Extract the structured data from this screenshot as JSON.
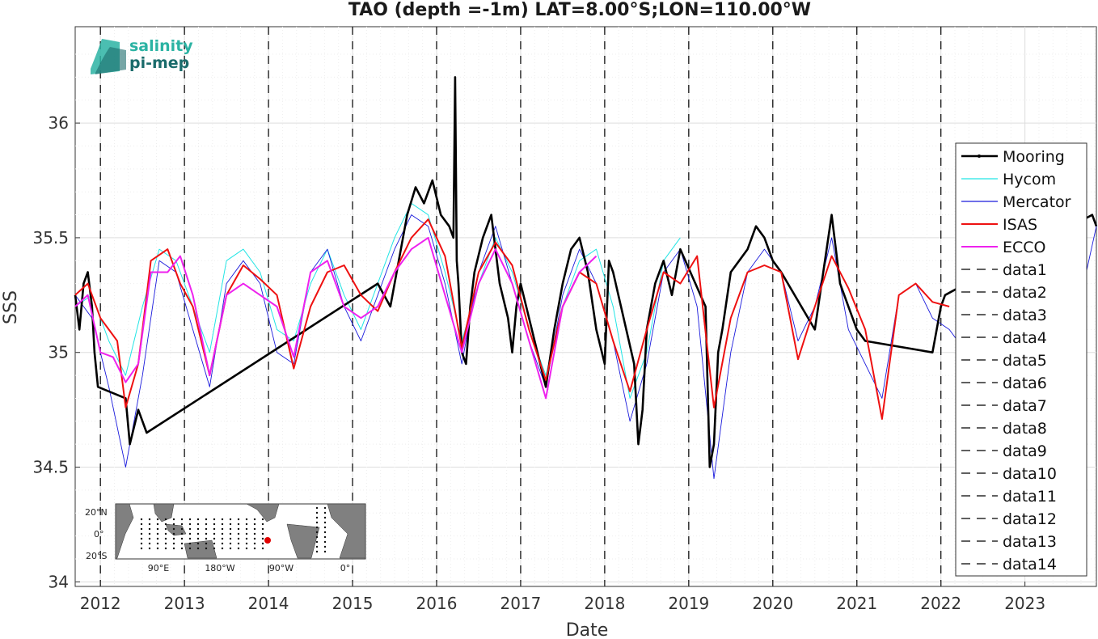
{
  "chart_data": {
    "type": "line",
    "title": "TAO (depth =-1m) LAT=8.00°S;LON=110.00°W",
    "xlabel": "Date",
    "ylabel": "SSS",
    "xlim": [
      2011.7,
      2023.85
    ],
    "ylim": [
      33.98,
      36.42
    ],
    "x_ticks": [
      2012,
      2013,
      2014,
      2015,
      2016,
      2017,
      2018,
      2019,
      2020,
      2021,
      2022,
      2023
    ],
    "x_tick_labels": [
      "2012",
      "2013",
      "2014",
      "2015",
      "2016",
      "2017",
      "2018",
      "2019",
      "2020",
      "2021",
      "2022",
      "2023"
    ],
    "y_ticks": [
      34,
      34.5,
      35,
      35.5,
      36
    ],
    "y_tick_labels": [
      "34",
      "34.5",
      "35",
      "35.5",
      "36"
    ],
    "grid": true,
    "legend_position": "right",
    "year_markers": [
      2012,
      2013,
      2014,
      2015,
      2016,
      2017,
      2018,
      2019,
      2020,
      2021,
      2022
    ],
    "series": [
      {
        "name": "Mooring",
        "color": "#000000",
        "style": "solid-dot",
        "x": [
          2011.7,
          2011.75,
          2011.8,
          2011.85,
          2011.9,
          2011.93,
          2011.97,
          2012.3,
          2012.35,
          2012.45,
          2012.55,
          2015.3,
          2015.45,
          2015.55,
          2015.65,
          2015.75,
          2015.85,
          2015.95,
          2016.05,
          2016.15,
          2016.2,
          2016.22,
          2016.24,
          2016.26,
          2016.3,
          2016.35,
          2016.4,
          2016.45,
          2016.55,
          2016.65,
          2016.75,
          2016.85,
          2016.9,
          2016.95,
          2017.0,
          2017.3,
          2017.4,
          2017.5,
          2017.6,
          2017.7,
          2017.8,
          2017.9,
          2018.0,
          2018.05,
          2018.1,
          2018.35,
          2018.4,
          2018.45,
          2018.5,
          2018.6,
          2018.7,
          2018.8,
          2018.9,
          2019.2,
          2019.25,
          2019.3,
          2019.35,
          2019.4,
          2019.5,
          2019.6,
          2019.7,
          2019.8,
          2019.9,
          2020.0,
          2020.1,
          2020.5,
          2020.6,
          2020.7,
          2020.8,
          2020.9,
          2021.0,
          2021.1,
          2021.9,
          2021.95,
          2022.0,
          2022.05,
          2023.8,
          2023.85
        ],
        "values": [
          35.25,
          35.1,
          35.3,
          35.35,
          35.2,
          35.0,
          34.85,
          34.8,
          34.6,
          34.75,
          34.65,
          35.3,
          35.2,
          35.4,
          35.6,
          35.72,
          35.65,
          35.75,
          35.6,
          35.55,
          35.5,
          36.2,
          35.4,
          35.3,
          35.0,
          34.95,
          35.2,
          35.35,
          35.5,
          35.6,
          35.3,
          35.15,
          35.0,
          35.2,
          35.3,
          34.85,
          35.1,
          35.3,
          35.45,
          35.5,
          35.35,
          35.1,
          34.95,
          35.4,
          35.35,
          34.95,
          34.6,
          34.75,
          35.1,
          35.3,
          35.4,
          35.25,
          35.45,
          35.2,
          34.5,
          34.6,
          35.0,
          35.1,
          35.35,
          35.4,
          35.45,
          35.55,
          35.5,
          35.4,
          35.35,
          35.1,
          35.35,
          35.6,
          35.3,
          35.2,
          35.1,
          35.05,
          35.0,
          35.1,
          35.2,
          35.25,
          35.6,
          35.55
        ]
      },
      {
        "name": "Hycom",
        "color": "#22e5e5",
        "style": "solid",
        "x": [
          2011.7,
          2011.9,
          2012.1,
          2012.3,
          2012.5,
          2012.7,
          2012.9,
          2013.1,
          2013.3,
          2013.5,
          2013.7,
          2013.9,
          2014.1,
          2014.3,
          2014.5,
          2014.7,
          2014.9,
          2015.1,
          2015.3,
          2015.5,
          2015.7,
          2015.9,
          2016.1,
          2016.3,
          2016.5,
          2016.7,
          2016.9,
          2017.1,
          2017.3,
          2017.5,
          2017.7,
          2017.9,
          2018.1,
          2018.3,
          2018.5,
          2018.7,
          2018.9
        ],
        "values": [
          35.2,
          35.25,
          35.05,
          34.9,
          35.2,
          35.45,
          35.4,
          35.2,
          35.0,
          35.4,
          35.45,
          35.35,
          35.1,
          35.05,
          35.3,
          35.45,
          35.25,
          35.1,
          35.3,
          35.5,
          35.65,
          35.6,
          35.35,
          35.05,
          35.3,
          35.5,
          35.35,
          35.1,
          34.9,
          35.2,
          35.4,
          35.45,
          35.2,
          34.8,
          35.0,
          35.4,
          35.5
        ]
      },
      {
        "name": "Mercator",
        "color": "#1a1adc",
        "style": "solid",
        "x": [
          2011.7,
          2011.9,
          2012.1,
          2012.3,
          2012.5,
          2012.7,
          2012.9,
          2013.1,
          2013.3,
          2013.5,
          2013.7,
          2013.9,
          2014.1,
          2014.3,
          2014.5,
          2014.7,
          2014.9,
          2015.1,
          2015.3,
          2015.5,
          2015.7,
          2015.9,
          2016.1,
          2016.3,
          2016.5,
          2016.7,
          2016.9,
          2017.1,
          2017.3,
          2017.5,
          2017.7,
          2017.9,
          2018.1,
          2018.3,
          2018.5,
          2018.7,
          2018.9,
          2019.1,
          2019.3,
          2019.5,
          2019.7,
          2019.9,
          2020.1,
          2020.3,
          2020.5,
          2020.7,
          2020.9,
          2021.1,
          2021.3,
          2021.5,
          2021.7,
          2021.9,
          2022.1,
          2022.3,
          2022.5,
          2022.7,
          2022.9,
          2023.1,
          2023.3,
          2023.5,
          2023.7,
          2023.85
        ],
        "values": [
          35.25,
          35.15,
          34.85,
          34.5,
          34.9,
          35.4,
          35.35,
          35.1,
          34.85,
          35.3,
          35.4,
          35.3,
          35.0,
          34.95,
          35.35,
          35.45,
          35.2,
          35.05,
          35.25,
          35.45,
          35.6,
          35.55,
          35.3,
          34.95,
          35.35,
          35.55,
          35.3,
          35.05,
          34.85,
          35.25,
          35.45,
          35.3,
          35.05,
          34.7,
          34.95,
          35.35,
          35.45,
          35.2,
          34.45,
          35.0,
          35.35,
          35.45,
          35.35,
          35.05,
          35.2,
          35.5,
          35.1,
          34.95,
          34.8,
          35.25,
          35.3,
          35.15,
          35.1,
          35.0,
          34.9,
          34.95,
          35.05,
          34.9,
          34.95,
          35.1,
          35.3,
          35.55
        ]
      },
      {
        "name": "ISAS",
        "color": "#ee1111",
        "style": "solid",
        "x": [
          2011.7,
          2011.85,
          2012.0,
          2012.1,
          2012.2,
          2012.3,
          2012.45,
          2012.6,
          2012.8,
          2012.95,
          2013.1,
          2013.3,
          2013.5,
          2013.7,
          2013.9,
          2014.1,
          2014.3,
          2014.5,
          2014.7,
          2014.9,
          2015.1,
          2015.3,
          2015.5,
          2015.7,
          2015.9,
          2016.1,
          2016.3,
          2016.5,
          2016.7,
          2016.9,
          2017.1,
          2017.3,
          2017.5,
          2017.7,
          2017.9,
          2018.1,
          2018.3,
          2018.5,
          2018.7,
          2018.9,
          2019.1,
          2019.3,
          2019.5,
          2019.7,
          2019.9,
          2020.1,
          2020.3,
          2020.5,
          2020.7,
          2020.9,
          2021.1,
          2021.3,
          2021.5,
          2021.7,
          2021.9,
          2022.1
        ],
        "values": [
          35.25,
          35.3,
          35.15,
          35.1,
          35.05,
          34.76,
          34.95,
          35.4,
          35.45,
          35.3,
          35.2,
          34.9,
          35.25,
          35.38,
          35.32,
          35.25,
          34.93,
          35.2,
          35.35,
          35.38,
          35.25,
          35.18,
          35.35,
          35.5,
          35.58,
          35.42,
          35.02,
          35.35,
          35.48,
          35.38,
          35.1,
          34.88,
          35.2,
          35.35,
          35.3,
          35.05,
          34.83,
          35.1,
          35.35,
          35.3,
          35.42,
          34.76,
          35.15,
          35.35,
          35.38,
          35.35,
          34.97,
          35.2,
          35.42,
          35.28,
          35.1,
          34.71,
          35.25,
          35.3,
          35.22,
          35.2
        ]
      },
      {
        "name": "ECCO",
        "color": "#ee22ee",
        "style": "solid",
        "x": [
          2011.7,
          2011.85,
          2012.0,
          2012.15,
          2012.3,
          2012.45,
          2012.6,
          2012.8,
          2012.95,
          2013.1,
          2013.3,
          2013.5,
          2013.7,
          2013.9,
          2014.1,
          2014.3,
          2014.5,
          2014.7,
          2014.9,
          2015.1,
          2015.3,
          2015.5,
          2015.7,
          2015.9,
          2016.1,
          2016.3,
          2016.5,
          2016.7,
          2016.9,
          2017.1,
          2017.3,
          2017.5,
          2017.7,
          2017.9
        ],
        "values": [
          35.2,
          35.25,
          35.0,
          34.98,
          34.87,
          34.95,
          35.35,
          35.35,
          35.42,
          35.25,
          34.9,
          35.25,
          35.3,
          35.25,
          35.2,
          34.98,
          35.35,
          35.4,
          35.2,
          35.15,
          35.2,
          35.35,
          35.45,
          35.5,
          35.25,
          35.0,
          35.3,
          35.45,
          35.3,
          35.05,
          34.8,
          35.2,
          35.35,
          35.42
        ]
      },
      {
        "name": "data1",
        "color": "#000000",
        "style": "dashed"
      },
      {
        "name": "data2",
        "color": "#000000",
        "style": "dashed"
      },
      {
        "name": "data3",
        "color": "#000000",
        "style": "dashed"
      },
      {
        "name": "data4",
        "color": "#000000",
        "style": "dashed"
      },
      {
        "name": "data5",
        "color": "#000000",
        "style": "dashed"
      },
      {
        "name": "data6",
        "color": "#000000",
        "style": "dashed"
      },
      {
        "name": "data7",
        "color": "#000000",
        "style": "dashed"
      },
      {
        "name": "data8",
        "color": "#000000",
        "style": "dashed"
      },
      {
        "name": "data9",
        "color": "#000000",
        "style": "dashed"
      },
      {
        "name": "data10",
        "color": "#000000",
        "style": "dashed"
      },
      {
        "name": "data11",
        "color": "#000000",
        "style": "dashed"
      },
      {
        "name": "data12",
        "color": "#000000",
        "style": "dashed"
      },
      {
        "name": "data13",
        "color": "#000000",
        "style": "dashed"
      },
      {
        "name": "data14",
        "color": "#000000",
        "style": "dashed"
      }
    ]
  },
  "logo": {
    "line1": "salinity",
    "line2": "pi-mep"
  },
  "inset_map": {
    "y_labels": [
      "20°N",
      "0°",
      "20°S"
    ],
    "x_labels": [
      "90°E",
      "180°W",
      "90°W",
      "0°"
    ],
    "marker_color": "#e00000",
    "land_color": "#808080"
  }
}
